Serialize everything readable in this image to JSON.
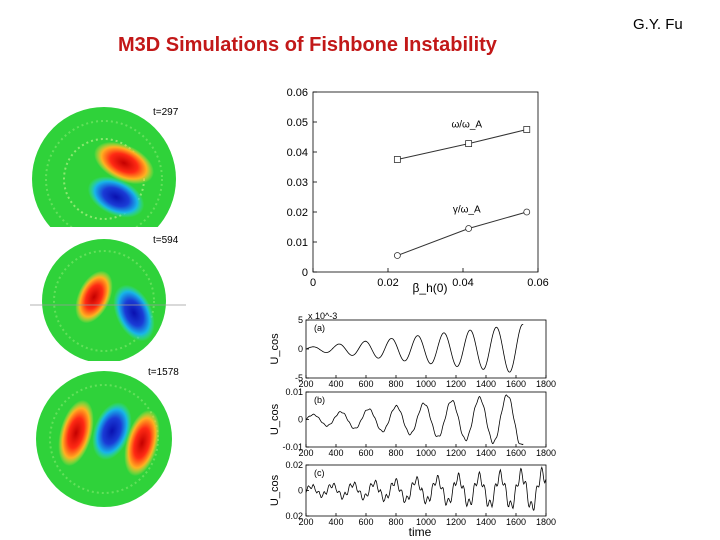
{
  "slide": {
    "title": "M3D Simulations of Fishbone Instability",
    "author": "G.Y. Fu"
  },
  "contours": {
    "labels": [
      "t=297",
      "t=594",
      "t=1578"
    ]
  },
  "colors": {
    "title": "#c21818",
    "field": "#2fd23a",
    "positive": "#e31c1c",
    "negative": "#1a3cd6"
  },
  "chart_data": [
    {
      "type": "line",
      "xlabel": "β_h(0)",
      "xlim": [
        0,
        0.06
      ],
      "ylim": [
        0,
        0.06
      ],
      "x_ticks": [
        "0",
        "0.02",
        "0.04",
        "0.06"
      ],
      "y_ticks": [
        "0",
        "0.01",
        "0.02",
        "0.03",
        "0.04",
        "0.05",
        "0.06"
      ],
      "series": [
        {
          "name": "ω/ω_A",
          "marker": "square",
          "x": [
            0.0225,
            0.0415,
            0.057
          ],
          "y": [
            0.0375,
            0.0428,
            0.0475
          ]
        },
        {
          "name": "γ/ω_A",
          "marker": "circle",
          "x": [
            0.0225,
            0.0415,
            0.057
          ],
          "y": [
            0.0055,
            0.0145,
            0.02
          ]
        }
      ]
    },
    {
      "type": "line",
      "panel": "(a)",
      "ylabel": "U_cos",
      "y_scale_label": "x 10^-3",
      "xlim": [
        200,
        1800
      ],
      "ylim": [
        -5,
        5
      ],
      "x_ticks": [
        "200",
        "400",
        "600",
        "800",
        "1000",
        "1200",
        "1400",
        "1600",
        "1800"
      ],
      "y_ticks": [
        "5",
        "0",
        "-5"
      ],
      "series": [
        {
          "kind": "growing-oscillation",
          "x_end": 1650,
          "period": 175,
          "amp_start": 0.05,
          "amp_end": 0.85,
          "noise": 0
        }
      ]
    },
    {
      "type": "line",
      "panel": "(b)",
      "ylabel": "U_cos",
      "xlim": [
        200,
        1800
      ],
      "ylim": [
        -0.01,
        0.01
      ],
      "x_ticks": [
        "200",
        "400",
        "600",
        "800",
        "1000",
        "1200",
        "1400",
        "1600",
        "1800"
      ],
      "y_ticks": [
        "0.01",
        "0",
        "-0.01"
      ],
      "series": [
        {
          "kind": "growing-oscillation",
          "x_end": 1650,
          "period": 185,
          "amp_start": 0.15,
          "amp_end": 0.95,
          "noise": 0.08
        }
      ]
    },
    {
      "type": "line",
      "panel": "(c)",
      "ylabel": "U_cos",
      "xlabel": "time",
      "xlim": [
        200,
        1800
      ],
      "ylim": [
        -0.02,
        0.02
      ],
      "x_ticks": [
        "200",
        "400",
        "600",
        "800",
        "1000",
        "1200",
        "1400",
        "1600",
        "1800"
      ],
      "y_ticks": [
        "0.02",
        "0",
        "0.02"
      ],
      "series": [
        {
          "kind": "growing-oscillation",
          "x_end": 1800,
          "period": 140,
          "amp_start": 0.15,
          "amp_end": 0.7,
          "noise": 0.35
        }
      ]
    }
  ]
}
